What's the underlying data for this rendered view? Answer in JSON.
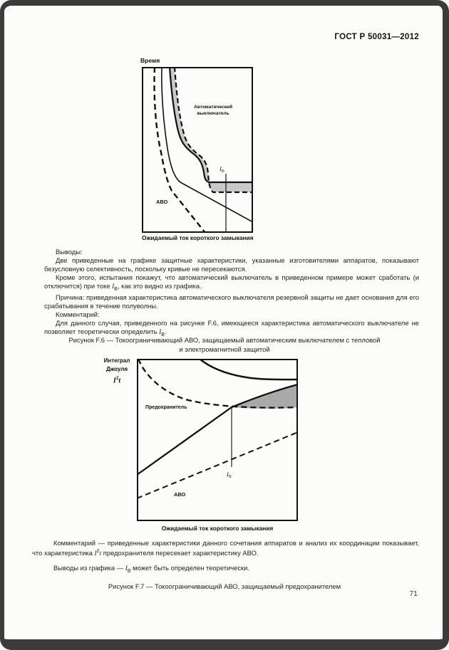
{
  "header": {
    "doc_number": "ГОСТ Р 50031—2012"
  },
  "page_number": "71",
  "colors": {
    "frame": "#3b3b3b",
    "line": "#111111",
    "band_fill_f6": "#c9c9c9",
    "shade_fill_f7": "#a9a9a9",
    "paper": "#fcfcfb"
  },
  "figure_f6": {
    "y_axis_label": "Время",
    "x_axis_label": "Ожидаемый ток короткого замыкания",
    "breaker_label_line1": "Автоматический",
    "breaker_label_line2": "выключатель",
    "avo_label": "АВО",
    "i_symbol": "I",
    "i_sub": "B"
  },
  "f6_text": [
    [
      {
        "t": "Выводы:"
      }
    ],
    [
      {
        "t": "Две приведенные на графике защитные характеристики, указанные изготовителями аппаратов, показывают безусловную селективность, поскольку кривые не пересекаются."
      }
    ],
    [
      {
        "t": "Кроме этого, испытания покажут, что автоматический выключатель в приведенном примере может сработать (и отключится)  при токе  "
      },
      {
        "t": "I",
        "cls": "var"
      },
      {
        "t": "B",
        "cls": "sub"
      },
      {
        "t": ", как это видно из графика."
      }
    ],
    [
      {
        "t": "Причина: приведенная характеристика автоматического выключателя резервной защиты не дает основания для его срабатывания в течение полуволны."
      }
    ],
    [
      {
        "t": "Комментарий:"
      }
    ],
    [
      {
        "t": "Для данного случая, приведенного на рисунке F.6, имеющееся характеристика автоматического выключателе не позволяет теоретически определить  "
      },
      {
        "t": "I",
        "cls": "var"
      },
      {
        "t": "B",
        "cls": "sub"
      },
      {
        "t": "."
      }
    ]
  ],
  "caption_f6": {
    "line1": "Рисунок F.6 — Токоограничивающий АВО,  защищаемый автоматическим выключателем с тепловой",
    "line2": "и электромагнитной защитой"
  },
  "figure_f7": {
    "y_axis_label_line1": "Интеграл",
    "y_axis_label_line2": "Джоуля",
    "y_axis_math_i": "I",
    "y_axis_math_sup": "2",
    "y_axis_math_t": "t",
    "fuse_label": "Предохранитель",
    "avo_label": "АВО",
    "x_axis_label": "Ожидаемый ток короткого замыкания",
    "i_symbol": "I",
    "i_sub": "B"
  },
  "f7_comment": [
    {
      "t": "Комментарий — приведенные характеристики данного сочетания аппаратов и анализ их координации показывает, что характеристика "
    },
    {
      "t": "I",
      "cls": "var"
    },
    {
      "t": "2",
      "cls": "sup"
    },
    {
      "t": "t",
      "cls": "var"
    },
    {
      "t": " предохранителя пересекает характеристику АВО."
    }
  ],
  "f7_conclusion": [
    {
      "t": "Выводы из графика — "
    },
    {
      "t": "I",
      "cls": "var"
    },
    {
      "t": "B",
      "cls": "sub"
    },
    {
      "t": " может быть определен теоретически."
    }
  ],
  "caption_f7": "Рисунок F.7 — Токоограничивающий АВО, защищаемый предохранителем"
}
